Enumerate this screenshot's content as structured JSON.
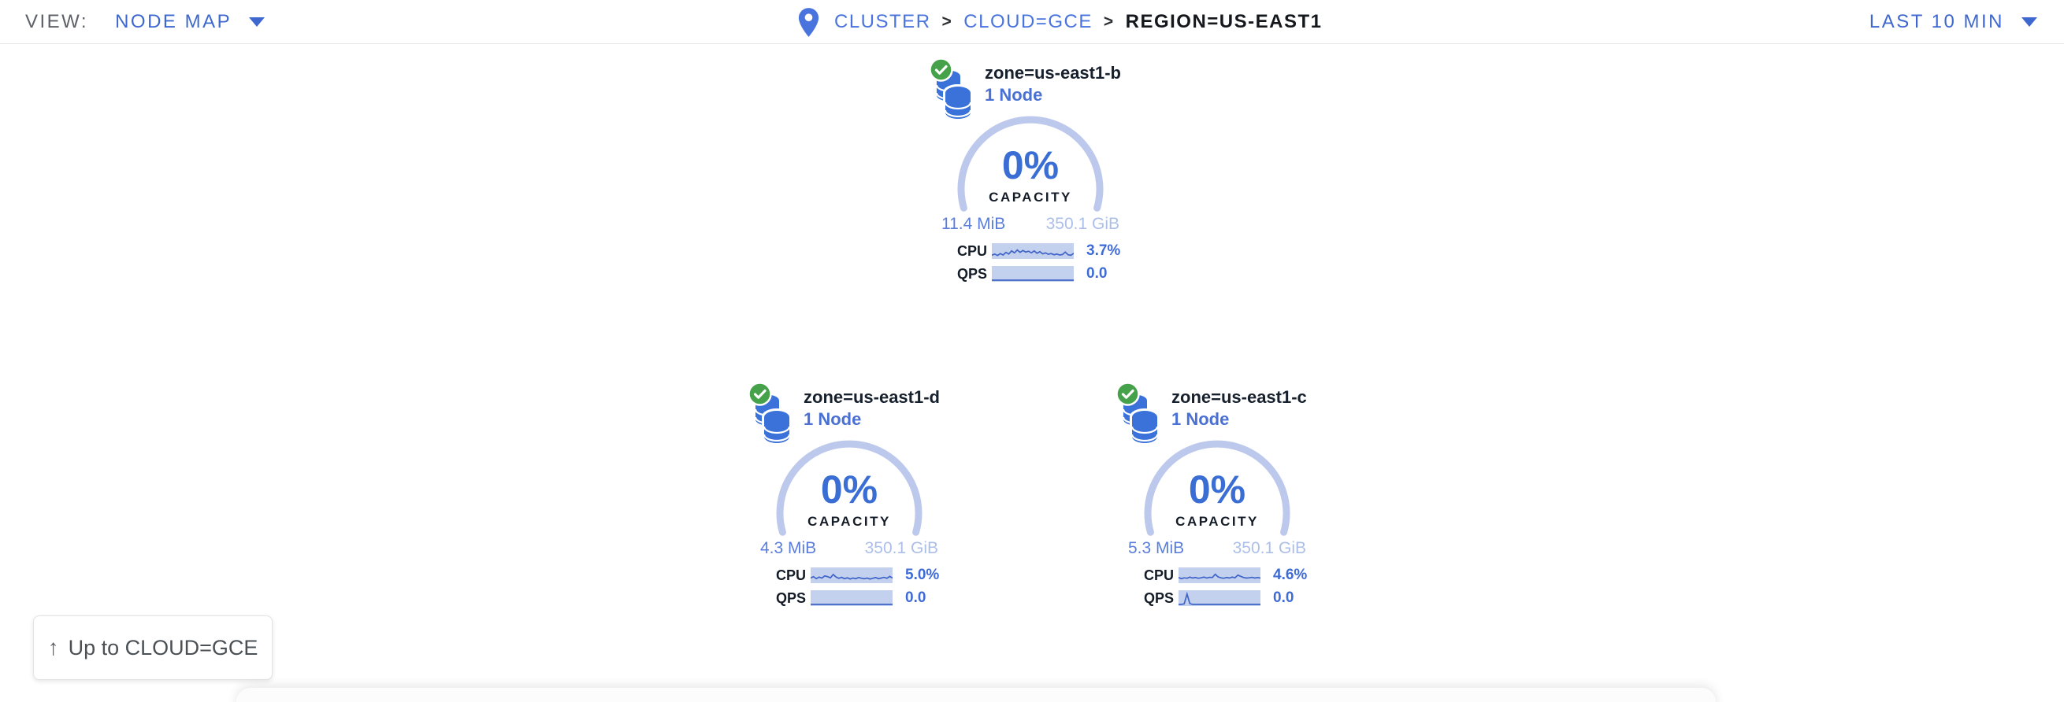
{
  "header": {
    "view_label": "VIEW:",
    "view_value": "NODE MAP",
    "separator": ">",
    "breadcrumb": [
      {
        "label": "CLUSTER"
      },
      {
        "label": "CLOUD=GCE"
      },
      {
        "label": "REGION=US-EAST1"
      }
    ],
    "time_range": "LAST 10 MIN"
  },
  "labels": {
    "capacity": "CAPACITY",
    "cpu": "CPU",
    "qps": "QPS"
  },
  "zones": [
    {
      "name": "zone=us-east1-b",
      "nodes": "1 Node",
      "capacity_pct": "0%",
      "used": "11.4 MiB",
      "total": "350.1 GiB",
      "cpu_value": "3.7%",
      "qps_value": "0.0",
      "cpu_spark": [
        0.18,
        0.28,
        0.16,
        0.32,
        0.2,
        0.42,
        0.28,
        0.55,
        0.38,
        0.62,
        0.42,
        0.58,
        0.45,
        0.52,
        0.38,
        0.55,
        0.35,
        0.48,
        0.3,
        0.38,
        0.26,
        0.32,
        0.22,
        0.28,
        0.2,
        0.24,
        0.45,
        0.22,
        0.18,
        0.35
      ],
      "qps_spark": [
        0,
        0
      ]
    },
    {
      "name": "zone=us-east1-d",
      "nodes": "1 Node",
      "capacity_pct": "0%",
      "used": "4.3 MiB",
      "total": "350.1 GiB",
      "cpu_value": "5.0%",
      "qps_value": "0.0",
      "cpu_spark": [
        0.3,
        0.42,
        0.25,
        0.38,
        0.3,
        0.48,
        0.42,
        0.32,
        0.6,
        0.38,
        0.28,
        0.36,
        0.25,
        0.32,
        0.22,
        0.3,
        0.25,
        0.35,
        0.28,
        0.24,
        0.3,
        0.22,
        0.28,
        0.35,
        0.25,
        0.3,
        0.36,
        0.28,
        0.44,
        0.3
      ],
      "qps_spark": [
        0,
        0
      ]
    },
    {
      "name": "zone=us-east1-c",
      "nodes": "1 Node",
      "capacity_pct": "0%",
      "used": "5.3 MiB",
      "total": "350.1 GiB",
      "cpu_value": "4.6%",
      "qps_value": "0.0",
      "cpu_spark": [
        0.35,
        0.25,
        0.32,
        0.28,
        0.38,
        0.3,
        0.35,
        0.28,
        0.32,
        0.38,
        0.3,
        0.36,
        0.35,
        0.62,
        0.4,
        0.32,
        0.28,
        0.35,
        0.3,
        0.38,
        0.32,
        0.55,
        0.45,
        0.35,
        0.3,
        0.32,
        0.36,
        0.3,
        0.34,
        0.3
      ],
      "qps_spark": [
        0,
        0,
        0.05,
        0.88,
        0.08,
        0,
        0,
        0,
        0,
        0,
        0,
        0,
        0,
        0,
        0,
        0,
        0,
        0,
        0,
        0,
        0,
        0,
        0,
        0,
        0,
        0,
        0,
        0,
        0,
        0
      ]
    }
  ],
  "up_button": {
    "arrow": "↑",
    "label": "Up to CLOUD=GCE"
  },
  "colors": {
    "accent_blue": "#3e68cf",
    "link_blue": "#4a74dd",
    "gauge_arc": "#bdc9ec",
    "spark_fill": "#c3d0ee",
    "spark_line": "#3f64c8",
    "status_green": "#46a24a",
    "db_icon_blue": "#3a72d9"
  }
}
